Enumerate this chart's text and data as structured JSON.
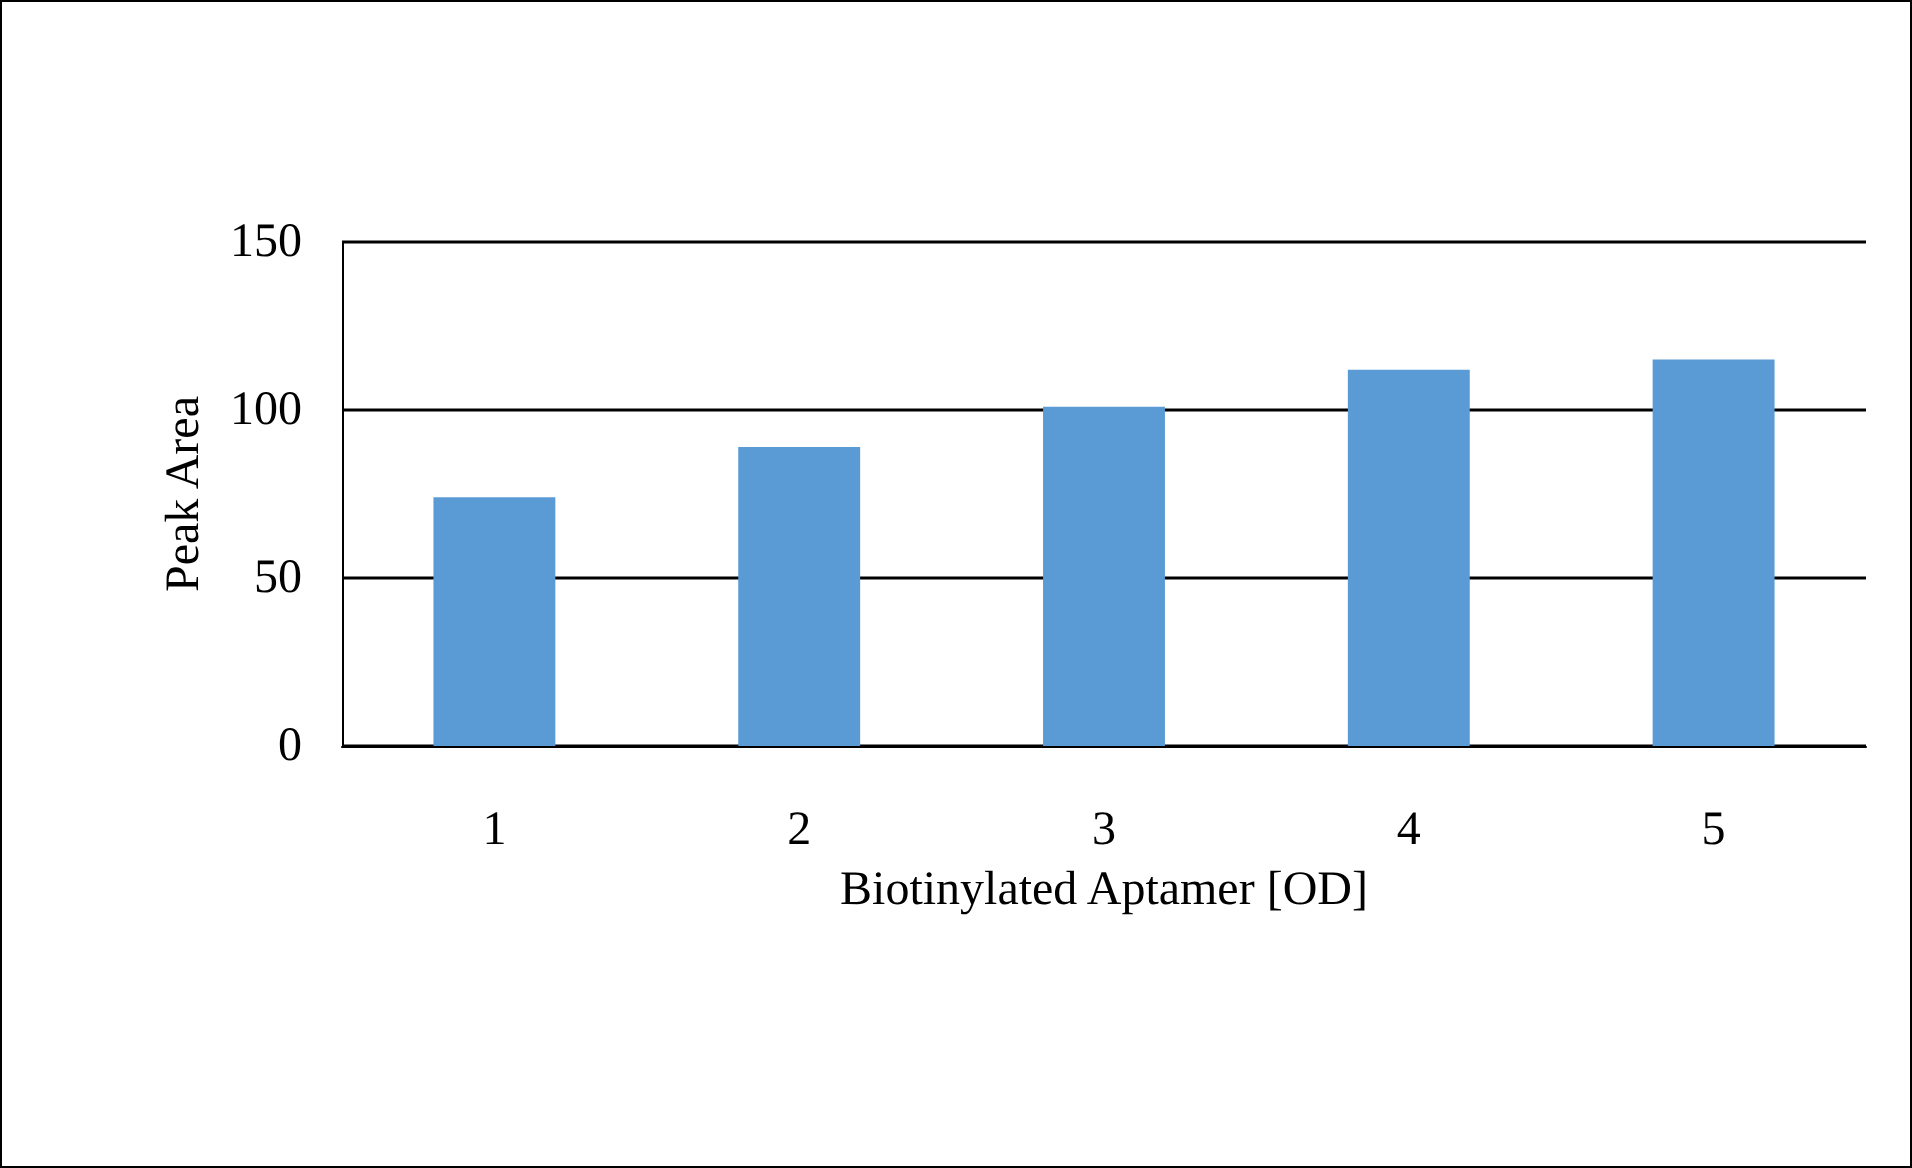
{
  "chart_data": {
    "type": "bar",
    "xlabel": "Biotinylated Aptamer [OD]",
    "ylabel": "Peak Area",
    "categories": [
      "1",
      "2",
      "3",
      "4",
      "5"
    ],
    "values": [
      74,
      89,
      101,
      112,
      115
    ],
    "color": "#5b9bd5",
    "ylim": [
      0,
      150
    ],
    "yticks": [
      0,
      50,
      100,
      150
    ],
    "grid": "y"
  }
}
